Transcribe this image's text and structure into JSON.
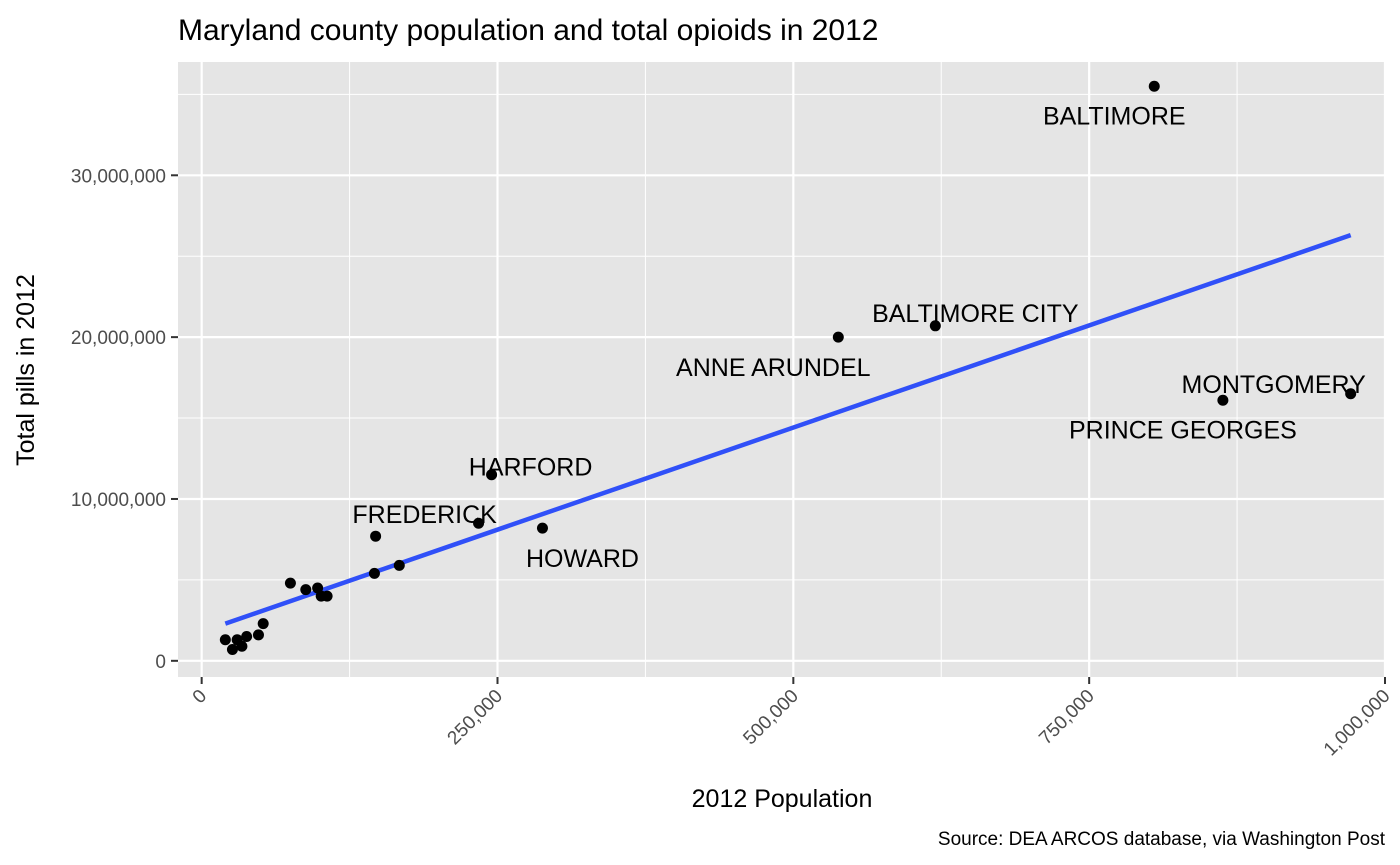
{
  "chart_data": {
    "type": "scatter",
    "title": "Maryland county population and total opioids in 2012",
    "xlabel": "2012 Population",
    "ylabel": "Total pills in 2012",
    "caption": "Source: DEA ARCOS database, via Washington Post",
    "xlim": [
      -20000,
      1000000
    ],
    "ylim": [
      -1000000,
      37000000
    ],
    "x_ticks": [
      0,
      250000,
      500000,
      750000,
      1000000
    ],
    "x_tick_labels": [
      "0",
      "250,000",
      "500,000",
      "750,000",
      "1,000,000"
    ],
    "y_ticks": [
      0,
      10000000,
      20000000,
      30000000
    ],
    "y_tick_labels": [
      "0",
      "10,000,000",
      "20,000,000",
      "30,000,000"
    ],
    "grid": true,
    "colors": {
      "panel": "#e5e5e5",
      "grid": "#ffffff",
      "points": "#000000",
      "trend_line": "#3050f8"
    },
    "points": [
      {
        "x": 805000,
        "y": 35500000,
        "label": "BALTIMORE"
      },
      {
        "x": 620000,
        "y": 20700000,
        "label": "BALTIMORE CITY"
      },
      {
        "x": 538000,
        "y": 20000000,
        "label": "ANNE ARUNDEL"
      },
      {
        "x": 971000,
        "y": 16500000,
        "label": "MONTGOMERY"
      },
      {
        "x": 863000,
        "y": 16100000,
        "label": "PRINCE GEORGES"
      },
      {
        "x": 245000,
        "y": 11500000,
        "label": "HARFORD"
      },
      {
        "x": 147000,
        "y": 7700000,
        "label": "FREDERICK"
      },
      {
        "x": 288000,
        "y": 8200000,
        "label": "HOWARD"
      },
      {
        "x": 234000,
        "y": 8500000,
        "label": ""
      },
      {
        "x": 146000,
        "y": 5400000,
        "label": ""
      },
      {
        "x": 167000,
        "y": 5900000,
        "label": ""
      },
      {
        "x": 75000,
        "y": 4800000,
        "label": ""
      },
      {
        "x": 88000,
        "y": 4400000,
        "label": ""
      },
      {
        "x": 98000,
        "y": 4500000,
        "label": ""
      },
      {
        "x": 101000,
        "y": 4000000,
        "label": ""
      },
      {
        "x": 106000,
        "y": 4000000,
        "label": ""
      },
      {
        "x": 52000,
        "y": 2300000,
        "label": ""
      },
      {
        "x": 48000,
        "y": 1600000,
        "label": ""
      },
      {
        "x": 38000,
        "y": 1500000,
        "label": ""
      },
      {
        "x": 20000,
        "y": 1300000,
        "label": ""
      },
      {
        "x": 30000,
        "y": 1300000,
        "label": ""
      },
      {
        "x": 34000,
        "y": 900000,
        "label": ""
      },
      {
        "x": 26000,
        "y": 700000,
        "label": ""
      }
    ],
    "trend_line": {
      "x": [
        20000,
        971000
      ],
      "y": [
        2300000,
        26300000
      ]
    }
  }
}
